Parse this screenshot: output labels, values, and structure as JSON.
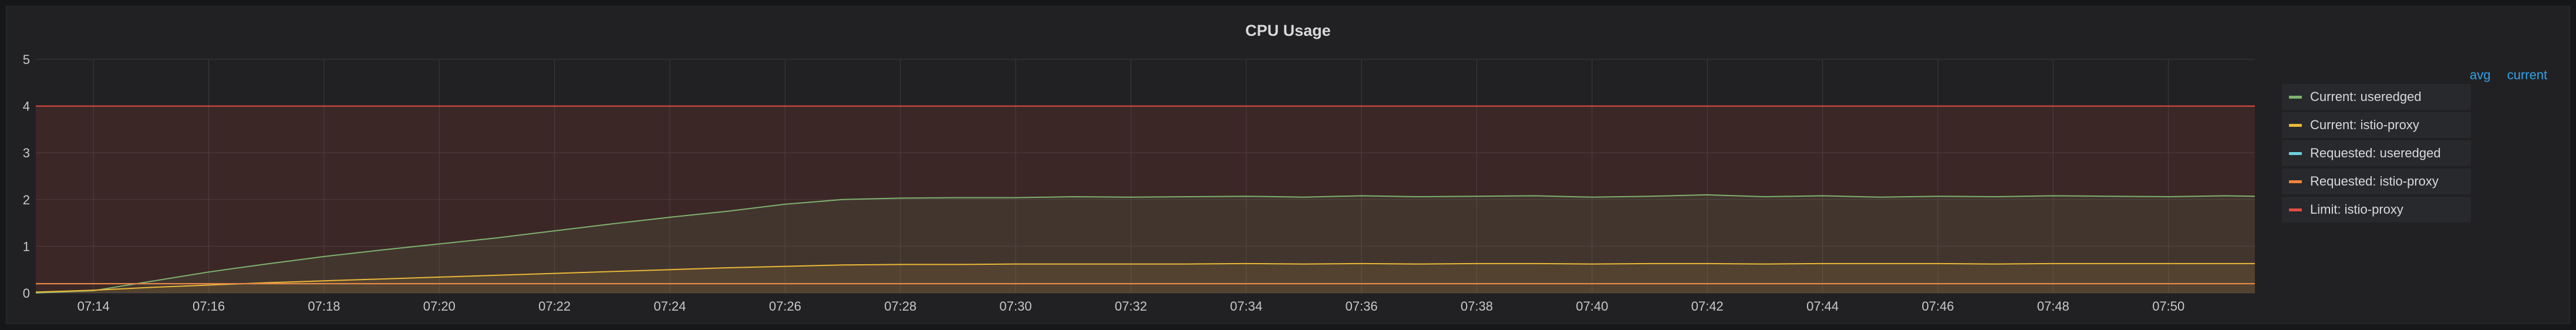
{
  "panel": {
    "title": "CPU Usage"
  },
  "legend": {
    "columns": [
      "avg",
      "current"
    ],
    "items": [
      {
        "label": "Current: useredged",
        "color": "#7eb26d"
      },
      {
        "label": "Current: istio-proxy",
        "color": "#eab839"
      },
      {
        "label": "Requested: useredged",
        "color": "#6ed0e0"
      },
      {
        "label": "Requested: istio-proxy",
        "color": "#ef843c"
      },
      {
        "label": "Limit: istio-proxy",
        "color": "#e24d42"
      }
    ]
  },
  "chart_data": {
    "type": "line",
    "title": "CPU Usage",
    "ylim": [
      0,
      5
    ],
    "y_ticks": [
      0,
      1,
      2,
      3,
      4,
      5
    ],
    "x_ticks": [
      "07:14",
      "07:16",
      "07:18",
      "07:20",
      "07:22",
      "07:24",
      "07:26",
      "07:28",
      "07:30",
      "07:32",
      "07:34",
      "07:36",
      "07:38",
      "07:40",
      "07:42",
      "07:44",
      "07:46",
      "07:48",
      "07:50"
    ],
    "x_range_minutes": [
      "07:13",
      "07:51.5"
    ],
    "grid": true,
    "legend_position": "right",
    "threshold_region": {
      "from": 0,
      "to": 4,
      "color": "#e24d42"
    },
    "series": [
      {
        "name": "Current: useredged",
        "color": "#7eb26d",
        "fill": true,
        "x": [
          "07:13",
          "07:14",
          "07:15",
          "07:16",
          "07:17",
          "07:18",
          "07:19",
          "07:20",
          "07:21",
          "07:22",
          "07:23",
          "07:24",
          "07:25",
          "07:26",
          "07:27",
          "07:28",
          "07:29",
          "07:30",
          "07:31",
          "07:32",
          "07:33",
          "07:34",
          "07:35",
          "07:36",
          "07:37",
          "07:38",
          "07:39",
          "07:40",
          "07:41",
          "07:42",
          "07:43",
          "07:44",
          "07:45",
          "07:46",
          "07:47",
          "07:48",
          "07:49",
          "07:50",
          "07:51",
          "07:51.5"
        ],
        "values": [
          0.0,
          0.05,
          0.25,
          0.45,
          0.62,
          0.78,
          0.92,
          1.05,
          1.18,
          1.33,
          1.48,
          1.62,
          1.75,
          1.9,
          2.0,
          2.03,
          2.04,
          2.04,
          2.06,
          2.05,
          2.06,
          2.07,
          2.05,
          2.08,
          2.06,
          2.07,
          2.08,
          2.05,
          2.07,
          2.1,
          2.06,
          2.08,
          2.05,
          2.07,
          2.06,
          2.08,
          2.07,
          2.06,
          2.08,
          2.07
        ]
      },
      {
        "name": "Current: istio-proxy",
        "color": "#eab839",
        "fill": true,
        "x": [
          "07:13",
          "07:14",
          "07:15",
          "07:16",
          "07:17",
          "07:18",
          "07:19",
          "07:20",
          "07:21",
          "07:22",
          "07:23",
          "07:24",
          "07:25",
          "07:26",
          "07:27",
          "07:28",
          "07:29",
          "07:30",
          "07:31",
          "07:32",
          "07:33",
          "07:34",
          "07:35",
          "07:36",
          "07:37",
          "07:38",
          "07:39",
          "07:40",
          "07:41",
          "07:42",
          "07:43",
          "07:44",
          "07:45",
          "07:46",
          "07:47",
          "07:48",
          "07:49",
          "07:50",
          "07:51",
          "07:51.5"
        ],
        "values": [
          0.02,
          0.06,
          0.12,
          0.17,
          0.22,
          0.26,
          0.3,
          0.34,
          0.38,
          0.42,
          0.46,
          0.5,
          0.54,
          0.57,
          0.6,
          0.61,
          0.61,
          0.62,
          0.62,
          0.62,
          0.62,
          0.63,
          0.62,
          0.63,
          0.62,
          0.63,
          0.63,
          0.62,
          0.63,
          0.63,
          0.62,
          0.63,
          0.63,
          0.63,
          0.62,
          0.63,
          0.63,
          0.63,
          0.63,
          0.63
        ]
      },
      {
        "name": "Requested: useredged",
        "color": "#6ed0e0",
        "fill": false,
        "x": [
          "07:13",
          "07:51.5"
        ],
        "values": [
          0.2,
          0.2
        ]
      },
      {
        "name": "Requested: istio-proxy",
        "color": "#ef843c",
        "fill": false,
        "x": [
          "07:13",
          "07:51.5"
        ],
        "values": [
          0.2,
          0.2
        ]
      },
      {
        "name": "Limit: istio-proxy",
        "color": "#e24d42",
        "fill": false,
        "x": [
          "07:13",
          "07:51.5"
        ],
        "values": [
          4,
          4
        ]
      }
    ]
  }
}
